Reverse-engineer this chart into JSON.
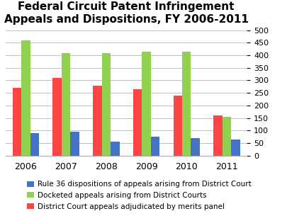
{
  "title": "Federal Circuit Patent Infringement\nAppeals and Dispositions, FY 2006-2011",
  "years": [
    "2006",
    "2007",
    "2008",
    "2009",
    "2010",
    "2011"
  ],
  "series": [
    {
      "key": "adjudicated",
      "label": "District Court appeals adjudicated by merits panel",
      "values": [
        270,
        310,
        280,
        265,
        240,
        160
      ],
      "color": "#FF4444"
    },
    {
      "key": "docketed",
      "label": "Docketed appeals arising from District Courts",
      "values": [
        460,
        410,
        410,
        415,
        415,
        155
      ],
      "color": "#92D050"
    },
    {
      "key": "rule36",
      "label": "Rule 36 dispositions of appeals arising from District Court",
      "values": [
        90,
        95,
        55,
        75,
        70,
        65
      ],
      "color": "#4472C4"
    }
  ],
  "ylim": [
    0,
    500
  ],
  "yticks": [
    0,
    50,
    100,
    150,
    200,
    250,
    300,
    350,
    400,
    450,
    500
  ],
  "background_color": "#FFFFFF",
  "grid_color": "#C0C0C0",
  "title_fontsize": 11,
  "tick_fontsize": 8,
  "xtick_fontsize": 9,
  "legend_fontsize": 7.5,
  "bar_width": 0.22,
  "bar_gap": 0.0
}
